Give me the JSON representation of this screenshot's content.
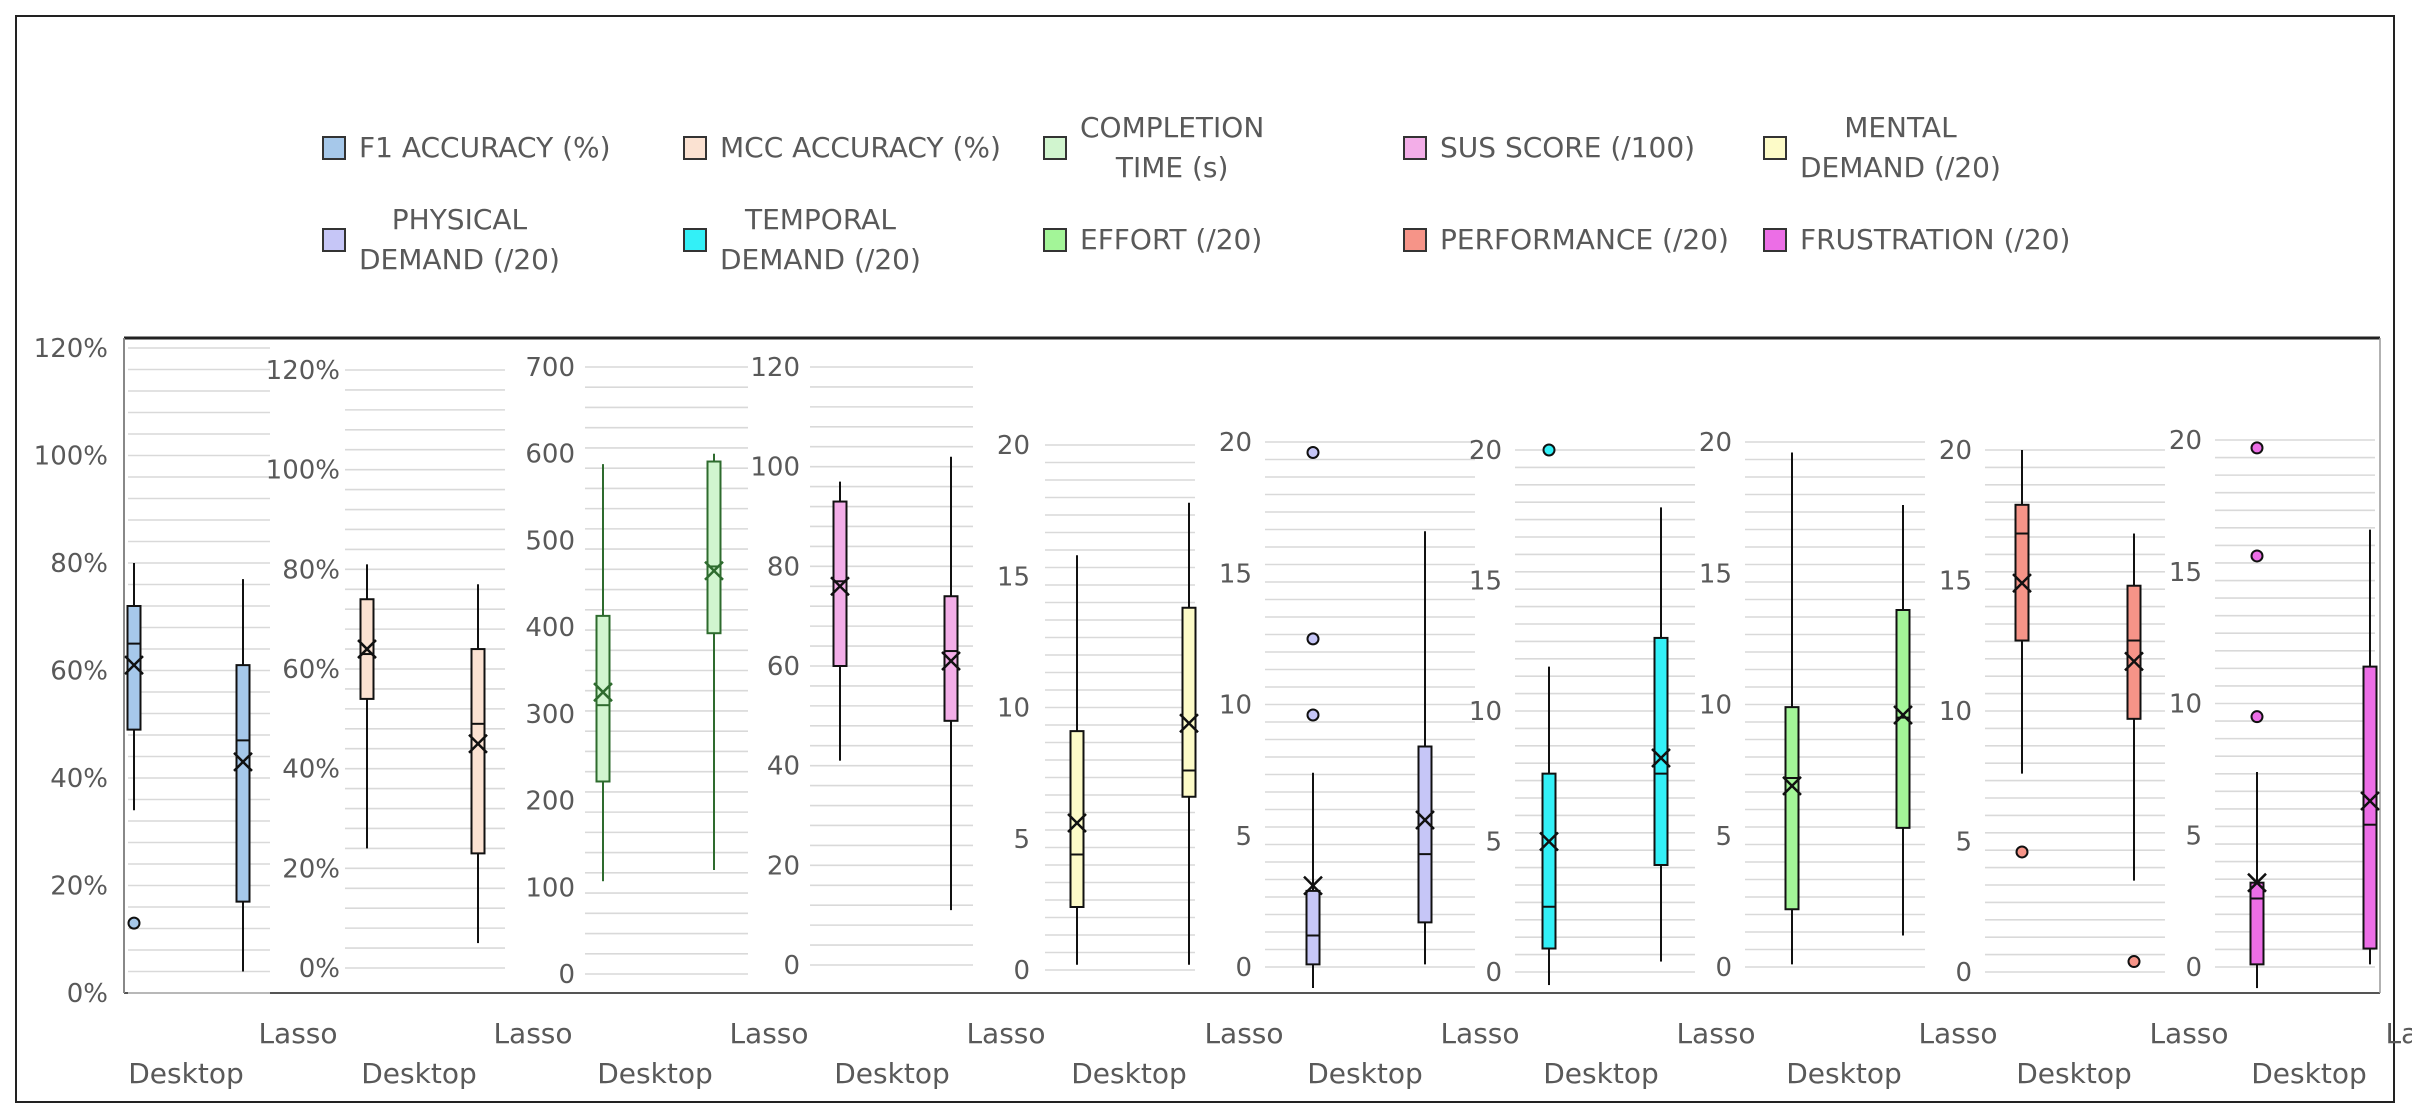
{
  "chart_data": {
    "type": "box",
    "categories": [
      "Desktop",
      "Lasso"
    ],
    "legend_position": "top",
    "grid": true,
    "panels": [
      {
        "series": "F1 ACCURACY (%)",
        "color": "#a6c8ea",
        "dark": false,
        "ticks": [
          "0%",
          "20%",
          "40%",
          "60%",
          "80%",
          "100%",
          "120%"
        ],
        "ylim": [
          0,
          120
        ],
        "tick_step": 20,
        "boxes": [
          {
            "category": "Desktop",
            "min": 34,
            "q1": 49,
            "median": 65,
            "q3": 72,
            "max": 80,
            "mean": 61,
            "outliers": [
              13
            ]
          },
          {
            "category": "Lasso",
            "min": 4,
            "q1": 17,
            "median": 47,
            "q3": 61,
            "max": 77,
            "mean": 43,
            "outliers": []
          }
        ]
      },
      {
        "series": "MCC ACCURACY (%)",
        "color": "#fbe2d2",
        "dark": false,
        "ticks": [
          "0%",
          "20%",
          "40%",
          "60%",
          "80%",
          "100%",
          "120%"
        ],
        "ylim": [
          0,
          120
        ],
        "tick_step": 20,
        "boxes": [
          {
            "category": "Desktop",
            "min": 24,
            "q1": 54,
            "median": 63,
            "q3": 74,
            "max": 81,
            "mean": 64,
            "outliers": []
          },
          {
            "category": "Lasso",
            "min": 5,
            "q1": 23,
            "median": 49,
            "q3": 64,
            "max": 77,
            "mean": 45,
            "outliers": []
          }
        ]
      },
      {
        "series": "COMPLETION TIME (s)",
        "color": "#d1f5cf",
        "dark": true,
        "ticks": [
          "0",
          "100",
          "200",
          "300",
          "400",
          "500",
          "600",
          "700"
        ],
        "ylim": [
          0,
          700
        ],
        "tick_step": 100,
        "boxes": [
          {
            "category": "Desktop",
            "min": 107,
            "q1": 222,
            "median": 310,
            "q3": 413,
            "max": 588,
            "mean": 325,
            "outliers": []
          },
          {
            "category": "Lasso",
            "min": 120,
            "q1": 393,
            "median": 470,
            "q3": 591,
            "max": 600,
            "mean": 465,
            "outliers": []
          }
        ]
      },
      {
        "series": "SUS SCORE (/100)",
        "color": "#f3aee8",
        "dark": false,
        "ticks": [
          "0",
          "20",
          "40",
          "60",
          "80",
          "100",
          "120"
        ],
        "ylim": [
          0,
          120
        ],
        "tick_step": 20,
        "boxes": [
          {
            "category": "Desktop",
            "min": 41,
            "q1": 60,
            "median": 77,
            "q3": 93,
            "max": 97,
            "mean": 76,
            "outliers": []
          },
          {
            "category": "Lasso",
            "min": 11,
            "q1": 49,
            "median": 63,
            "q3": 74,
            "max": 102,
            "mean": 61,
            "outliers": []
          }
        ]
      },
      {
        "series": "MENTAL DEMAND (/20)",
        "color": "#fdfbc8",
        "dark": false,
        "ticks": [
          "0",
          "5",
          "10",
          "15",
          "20"
        ],
        "ylim": [
          0,
          20
        ],
        "tick_step": 5,
        "boxes": [
          {
            "category": "Desktop",
            "min": 0.2,
            "q1": 2.4,
            "median": 4.4,
            "q3": 9.1,
            "max": 15.8,
            "mean": 5.6,
            "outliers": []
          },
          {
            "category": "Lasso",
            "min": 0.2,
            "q1": 6.6,
            "median": 7.6,
            "q3": 13.8,
            "max": 17.8,
            "mean": 9.4,
            "outliers": []
          }
        ]
      },
      {
        "series": "PHYSICAL DEMAND (/20)",
        "color": "#c6c6f7",
        "dark": false,
        "ticks": [
          "0",
          "5",
          "10",
          "15",
          "20"
        ],
        "ylim": [
          0,
          20
        ],
        "tick_step": 5,
        "boxes": [
          {
            "category": "Desktop",
            "min": -0.8,
            "q1": 0.1,
            "median": 1.2,
            "q3": 2.9,
            "max": 7.4,
            "mean": 3.1,
            "outliers": [
              9.6,
              12.5,
              19.6
            ]
          },
          {
            "category": "Lasso",
            "min": 0.1,
            "q1": 1.7,
            "median": 4.3,
            "q3": 8.4,
            "max": 16.6,
            "mean": 5.6,
            "outliers": []
          }
        ]
      },
      {
        "series": "TEMPORAL DEMAND (/20)",
        "color": "#33f0f7",
        "dark": false,
        "ticks": [
          "0",
          "5",
          "10",
          "15",
          "20"
        ],
        "ylim": [
          0,
          20
        ],
        "tick_step": 5,
        "boxes": [
          {
            "category": "Desktop",
            "min": -0.5,
            "q1": 0.9,
            "median": 2.5,
            "q3": 7.6,
            "max": 11.7,
            "mean": 5.0,
            "outliers": [
              20.0
            ]
          },
          {
            "category": "Lasso",
            "min": 0.4,
            "q1": 4.1,
            "median": 7.6,
            "q3": 12.8,
            "max": 17.8,
            "mean": 8.2,
            "outliers": []
          }
        ]
      },
      {
        "series": "EFFORT (/20)",
        "color": "#a3f598",
        "dark": false,
        "ticks": [
          "0",
          "5",
          "10",
          "15",
          "20"
        ],
        "ylim": [
          0,
          20
        ],
        "tick_step": 5,
        "boxes": [
          {
            "category": "Desktop",
            "min": 0.1,
            "q1": 2.2,
            "median": 7.2,
            "q3": 9.9,
            "max": 19.6,
            "mean": 6.9,
            "outliers": []
          },
          {
            "category": "Lasso",
            "min": 1.2,
            "q1": 5.3,
            "median": 9.5,
            "q3": 13.6,
            "max": 17.6,
            "mean": 9.6,
            "outliers": []
          }
        ]
      },
      {
        "series": "PERFORMANCE (/20)",
        "color": "#f69488",
        "dark": false,
        "ticks": [
          "0",
          "5",
          "10",
          "15",
          "20"
        ],
        "ylim": [
          0,
          20
        ],
        "tick_step": 5,
        "boxes": [
          {
            "category": "Desktop",
            "min": 7.6,
            "q1": 12.7,
            "median": 16.8,
            "q3": 17.9,
            "max": 20.0,
            "mean": 14.9,
            "outliers": [
              4.6
            ]
          },
          {
            "category": "Lasso",
            "min": 3.5,
            "q1": 9.7,
            "median": 12.7,
            "q3": 14.8,
            "max": 16.8,
            "mean": 11.9,
            "outliers": [
              0.4
            ]
          }
        ]
      },
      {
        "series": "FRUSTRATION (/20)",
        "color": "#ec6ee6",
        "dark": false,
        "ticks": [
          "0",
          "5",
          "10",
          "15",
          "20"
        ],
        "ylim": [
          0,
          20
        ],
        "tick_step": 5,
        "boxes": [
          {
            "category": "Desktop",
            "min": -0.8,
            "q1": 0.1,
            "median": 2.6,
            "q3": 3.2,
            "max": 7.4,
            "mean": 3.2,
            "outliers": [
              9.5,
              15.6,
              19.7
            ]
          },
          {
            "category": "Lasso",
            "min": 0.1,
            "q1": 0.7,
            "median": 5.4,
            "q3": 11.4,
            "max": 16.6,
            "mean": 6.3,
            "outliers": []
          }
        ]
      }
    ]
  }
}
